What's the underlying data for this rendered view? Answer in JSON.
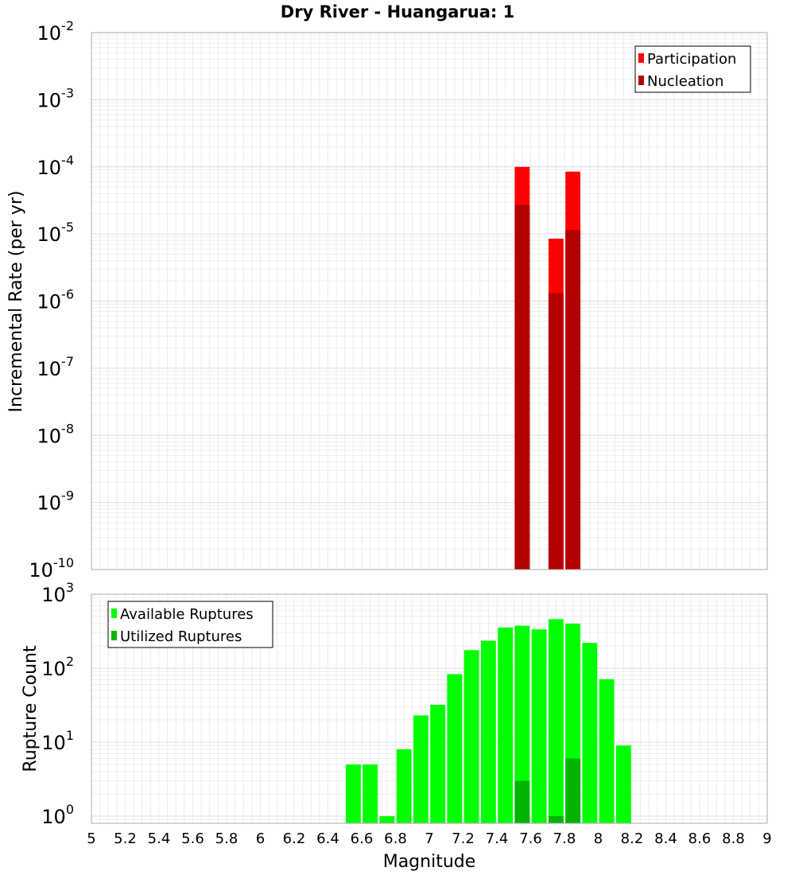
{
  "chart_data": [
    {
      "type": "bar",
      "title": "Dry River - Huangarua: 1",
      "xlabel": "Magnitude",
      "ylabel": "Incremental Rate (per yr)",
      "yscale": "log",
      "xlim": [
        5,
        9
      ],
      "ylim": [
        1e-10,
        0.01
      ],
      "grid": true,
      "legend_position": "top-right",
      "y_tick_labels": [
        {
          "base": "10",
          "exp": "-10",
          "value": 1e-10
        },
        {
          "base": "10",
          "exp": "-9",
          "value": 1e-09
        },
        {
          "base": "10",
          "exp": "-8",
          "value": 1e-08
        },
        {
          "base": "10",
          "exp": "-7",
          "value": 1e-07
        },
        {
          "base": "10",
          "exp": "-6",
          "value": 1e-06
        },
        {
          "base": "10",
          "exp": "-5",
          "value": 1e-05
        },
        {
          "base": "10",
          "exp": "-4",
          "value": 0.0001
        },
        {
          "base": "10",
          "exp": "-3",
          "value": 0.001
        },
        {
          "base": "10",
          "exp": "-2",
          "value": 0.01
        }
      ],
      "bar_width": 0.1,
      "series": [
        {
          "name": "Participation",
          "color": "#ff0000",
          "x": [
            7.55,
            7.75,
            7.85
          ],
          "values": [
            0.0001,
            8.5e-06,
            8.5e-05
          ]
        },
        {
          "name": "Nucleation",
          "color": "#b40000",
          "x": [
            7.55,
            7.75,
            7.85
          ],
          "values": [
            2.7e-05,
            1.3e-06,
            1.15e-05
          ]
        }
      ]
    },
    {
      "type": "bar",
      "title": "",
      "xlabel": "Magnitude",
      "ylabel": "Rupture Count",
      "yscale": "log",
      "xlim": [
        5,
        9
      ],
      "ylim": [
        0.8,
        1000
      ],
      "grid": true,
      "legend_position": "top-left",
      "y_tick_labels": [
        {
          "base": "10",
          "exp": "0",
          "value": 1
        },
        {
          "base": "10",
          "exp": "1",
          "value": 10
        },
        {
          "base": "10",
          "exp": "2",
          "value": 100
        },
        {
          "base": "10",
          "exp": "3",
          "value": 1000
        }
      ],
      "x_tick_labels": [
        "5",
        "5.2",
        "5.4",
        "5.6",
        "5.8",
        "6",
        "6.2",
        "6.4",
        "6.6",
        "6.8",
        "7",
        "7.2",
        "7.4",
        "7.6",
        "7.8",
        "8",
        "8.2",
        "8.4",
        "8.6",
        "8.8",
        "9"
      ],
      "bar_width": 0.1,
      "series": [
        {
          "name": "Available Ruptures",
          "color": "#00ff00",
          "x": [
            6.55,
            6.65,
            6.75,
            6.85,
            6.95,
            7.05,
            7.15,
            7.25,
            7.35,
            7.45,
            7.55,
            7.65,
            7.75,
            7.85,
            7.95,
            8.05,
            8.15
          ],
          "values": [
            5,
            5,
            1,
            8,
            23,
            32,
            83,
            175,
            235,
            355,
            375,
            335,
            460,
            400,
            220,
            71,
            9
          ]
        },
        {
          "name": "Utilized Ruptures",
          "color": "#00b400",
          "x": [
            7.55,
            7.75,
            7.85
          ],
          "values": [
            3,
            1,
            6
          ]
        }
      ]
    }
  ]
}
